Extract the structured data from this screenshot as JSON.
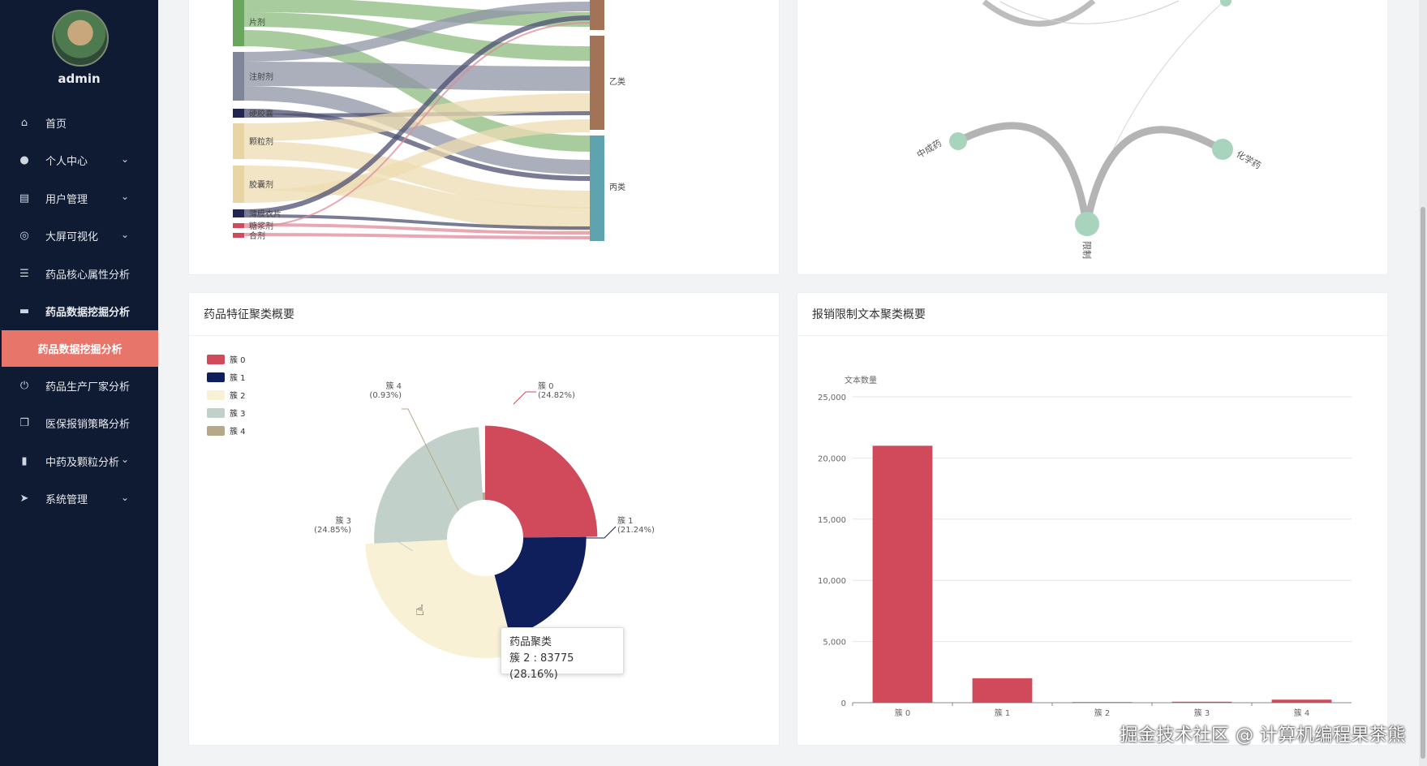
{
  "sidebar": {
    "username": "admin",
    "items": [
      {
        "icon": "home-icon",
        "glyph": "⌂",
        "label": "首页",
        "chevron": false,
        "bold": false
      },
      {
        "icon": "user-icon",
        "glyph": "●",
        "label": "个人中心",
        "chevron": true,
        "bold": false
      },
      {
        "icon": "clipboard-icon",
        "glyph": "▤",
        "label": "用户管理",
        "chevron": true,
        "bold": false
      },
      {
        "icon": "target-icon",
        "glyph": "◎",
        "label": "大屏可视化",
        "chevron": true,
        "bold": false
      },
      {
        "icon": "list-icon",
        "glyph": "☰",
        "label": "药品核心属性分析",
        "chevron": false,
        "bold": false
      },
      {
        "icon": "briefcase-icon",
        "glyph": "▬",
        "label": "药品数据挖掘分析",
        "chevron": false,
        "bold": true
      }
    ],
    "active_subitem": "药品数据挖掘分析",
    "items_after": [
      {
        "icon": "power-icon",
        "glyph": "⏻",
        "label": "药品生产厂家分析",
        "chevron": false
      },
      {
        "icon": "copy-icon",
        "glyph": "❐",
        "label": "医保报销策略分析",
        "chevron": false
      },
      {
        "icon": "bar-chart-icon",
        "glyph": "▮",
        "label": "中药及颗粒分析",
        "chevron": true
      },
      {
        "icon": "send-icon",
        "glyph": "➤",
        "label": "系统管理",
        "chevron": true
      }
    ],
    "chevron_glyph": "⌄"
  },
  "sankey": {
    "left_labels": [
      "片剂",
      "注射剂",
      "硬胶囊",
      "颗粒剂",
      "胶囊剂",
      "薄膜衣片",
      "糖浆剂",
      "合剂"
    ],
    "right_labels": [
      "乙类",
      "丙类"
    ]
  },
  "graph": {
    "nodes": [
      "中成药",
      "化学药",
      "限制"
    ]
  },
  "pie_card": {
    "title": "药品特征聚类概要",
    "legend": [
      "簇 0",
      "簇 1",
      "簇 2",
      "簇 3",
      "簇 4"
    ],
    "colors": [
      "#d14a5c",
      "#0f1f5c",
      "#f8f1d6",
      "#c1d0c9",
      "#b6a98a"
    ],
    "slice_labels": [
      {
        "name": "簇 0",
        "pct": "(24.82%)"
      },
      {
        "name": "簇 1",
        "pct": "(21.24%)"
      },
      {
        "name": "簇 3",
        "pct": "(24.85%)"
      },
      {
        "name": "簇 4",
        "pct": "(0.93%)"
      }
    ],
    "tooltip": {
      "title": "药品聚类",
      "body": "簇 2 : 83775 (28.16%)"
    }
  },
  "bar_card": {
    "title": "报销限制文本聚类概要"
  },
  "chart_data": [
    {
      "type": "pie",
      "title": "药品特征聚类概要",
      "categories": [
        "簇 0",
        "簇 1",
        "簇 2",
        "簇 3",
        "簇 4"
      ],
      "values": [
        24.82,
        21.24,
        28.16,
        24.85,
        0.93
      ],
      "unit": "%",
      "legend": "top-left"
    },
    {
      "type": "bar",
      "title": "报销限制文本聚类概要",
      "ylabel": "文本数量",
      "categories": [
        "簇 0",
        "簇 1",
        "簇 2",
        "簇 3",
        "簇 4"
      ],
      "values": [
        21000,
        2000,
        50,
        80,
        250
      ],
      "ylim": [
        0,
        25000
      ],
      "yticks": [
        "0",
        "5,000",
        "10,000",
        "15,000",
        "20,000",
        "25,000"
      ],
      "color": "#d14a5c",
      "grid": true
    }
  ],
  "watermark": "掘金技术社区 @ 计算机编程果茶熊"
}
